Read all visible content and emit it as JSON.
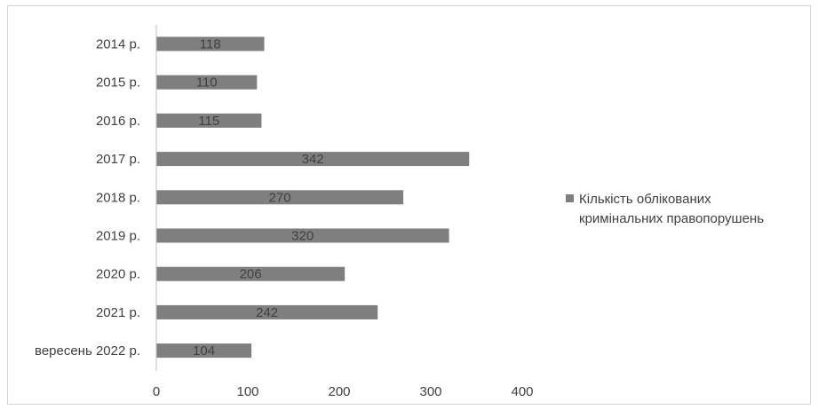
{
  "chart_data": {
    "type": "bar",
    "orientation": "horizontal",
    "categories": [
      "2014 р.",
      "2015 р.",
      "2016 р.",
      "2017 р.",
      "2018 р.",
      "2019 р.",
      "2020 р.",
      "2021 р.",
      "вересень 2022 р."
    ],
    "series": [
      {
        "name": "Кількість облікованих кримінальних правопорушень",
        "name_lines": [
          "Кількість облікованих",
          "кримінальних правопорушень"
        ],
        "values": [
          118,
          110,
          115,
          342,
          270,
          320,
          206,
          242,
          104
        ],
        "color": "#7f7f7f"
      }
    ],
    "xlim": [
      0,
      400
    ],
    "xticks": [
      0,
      100,
      200,
      300,
      400
    ],
    "data_labels": true,
    "legend_position": "right",
    "grid": false
  }
}
